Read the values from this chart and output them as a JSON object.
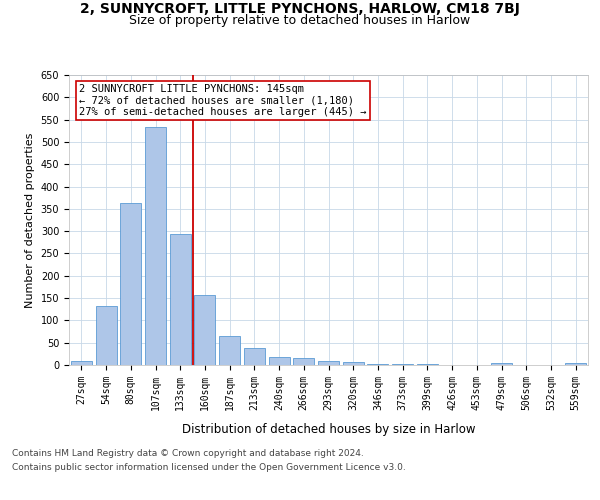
{
  "title": "2, SUNNYCROFT, LITTLE PYNCHONS, HARLOW, CM18 7BJ",
  "subtitle": "Size of property relative to detached houses in Harlow",
  "xlabel": "Distribution of detached houses by size in Harlow",
  "ylabel": "Number of detached properties",
  "categories": [
    "27sqm",
    "54sqm",
    "80sqm",
    "107sqm",
    "133sqm",
    "160sqm",
    "187sqm",
    "213sqm",
    "240sqm",
    "266sqm",
    "293sqm",
    "320sqm",
    "346sqm",
    "373sqm",
    "399sqm",
    "426sqm",
    "453sqm",
    "479sqm",
    "506sqm",
    "532sqm",
    "559sqm"
  ],
  "values": [
    10,
    133,
    362,
    534,
    293,
    157,
    65,
    38,
    18,
    16,
    10,
    7,
    3,
    3,
    3,
    0,
    0,
    5,
    0,
    0,
    4
  ],
  "bar_color": "#aec6e8",
  "bar_edge_color": "#5b9bd5",
  "background_color": "#ffffff",
  "grid_color": "#c8d8e8",
  "vline_x": 4.5,
  "vline_color": "#cc0000",
  "annotation_text": "2 SUNNYCROFT LITTLE PYNCHONS: 145sqm\n← 72% of detached houses are smaller (1,180)\n27% of semi-detached houses are larger (445) →",
  "annotation_box_color": "#ffffff",
  "annotation_box_edge_color": "#cc0000",
  "footer_line1": "Contains HM Land Registry data © Crown copyright and database right 2024.",
  "footer_line2": "Contains public sector information licensed under the Open Government Licence v3.0.",
  "ylim": [
    0,
    650
  ],
  "yticks": [
    0,
    50,
    100,
    150,
    200,
    250,
    300,
    350,
    400,
    450,
    500,
    550,
    600,
    650
  ],
  "title_fontsize": 10,
  "subtitle_fontsize": 9,
  "xlabel_fontsize": 8.5,
  "ylabel_fontsize": 8,
  "tick_fontsize": 7,
  "annotation_fontsize": 7.5,
  "footer_fontsize": 6.5
}
